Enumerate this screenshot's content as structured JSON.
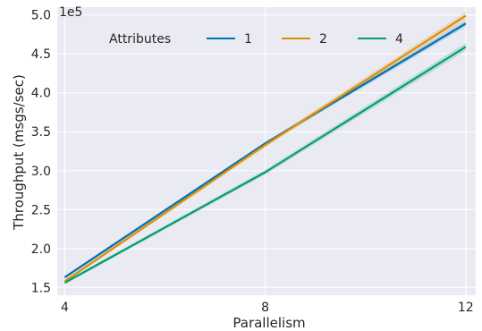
{
  "chart_data": {
    "type": "line",
    "title": "",
    "xlabel": "Parallelism",
    "ylabel": "Throughput (msgs/sec)",
    "y_scale_label": "1e5",
    "y_scale_factor": 100000,
    "x": [
      4,
      8,
      12
    ],
    "xlim": [
      3.85,
      12.2
    ],
    "ylim": [
      140000,
      510000
    ],
    "x_ticks": [
      4,
      8,
      12
    ],
    "y_ticks": [
      150000,
      200000,
      250000,
      300000,
      350000,
      400000,
      450000,
      500000
    ],
    "y_tick_labels": [
      "1.5",
      "2.0",
      "2.5",
      "3.0",
      "3.5",
      "4.0",
      "4.5",
      "5.0"
    ],
    "grid": true,
    "background": "#eaeaf2",
    "legend": {
      "title": "Attributes",
      "placement": "top"
    },
    "series": [
      {
        "name": "1",
        "values": [
          163000,
          335000,
          489000
        ],
        "ci": [
          [
            161000,
            165000
          ],
          [
            333000,
            337000
          ],
          [
            485000,
            493000
          ]
        ],
        "color": "#0173b2"
      },
      {
        "name": "2",
        "values": [
          158000,
          333000,
          499000
        ],
        "ci": [
          [
            156000,
            160000
          ],
          [
            330000,
            336000
          ],
          [
            494000,
            504000
          ]
        ],
        "color": "#de8f05"
      },
      {
        "name": "4",
        "values": [
          156000,
          298000,
          459000
        ],
        "ci": [
          [
            154000,
            158000
          ],
          [
            295000,
            301000
          ],
          [
            454000,
            464000
          ]
        ],
        "color": "#029e73"
      }
    ]
  }
}
